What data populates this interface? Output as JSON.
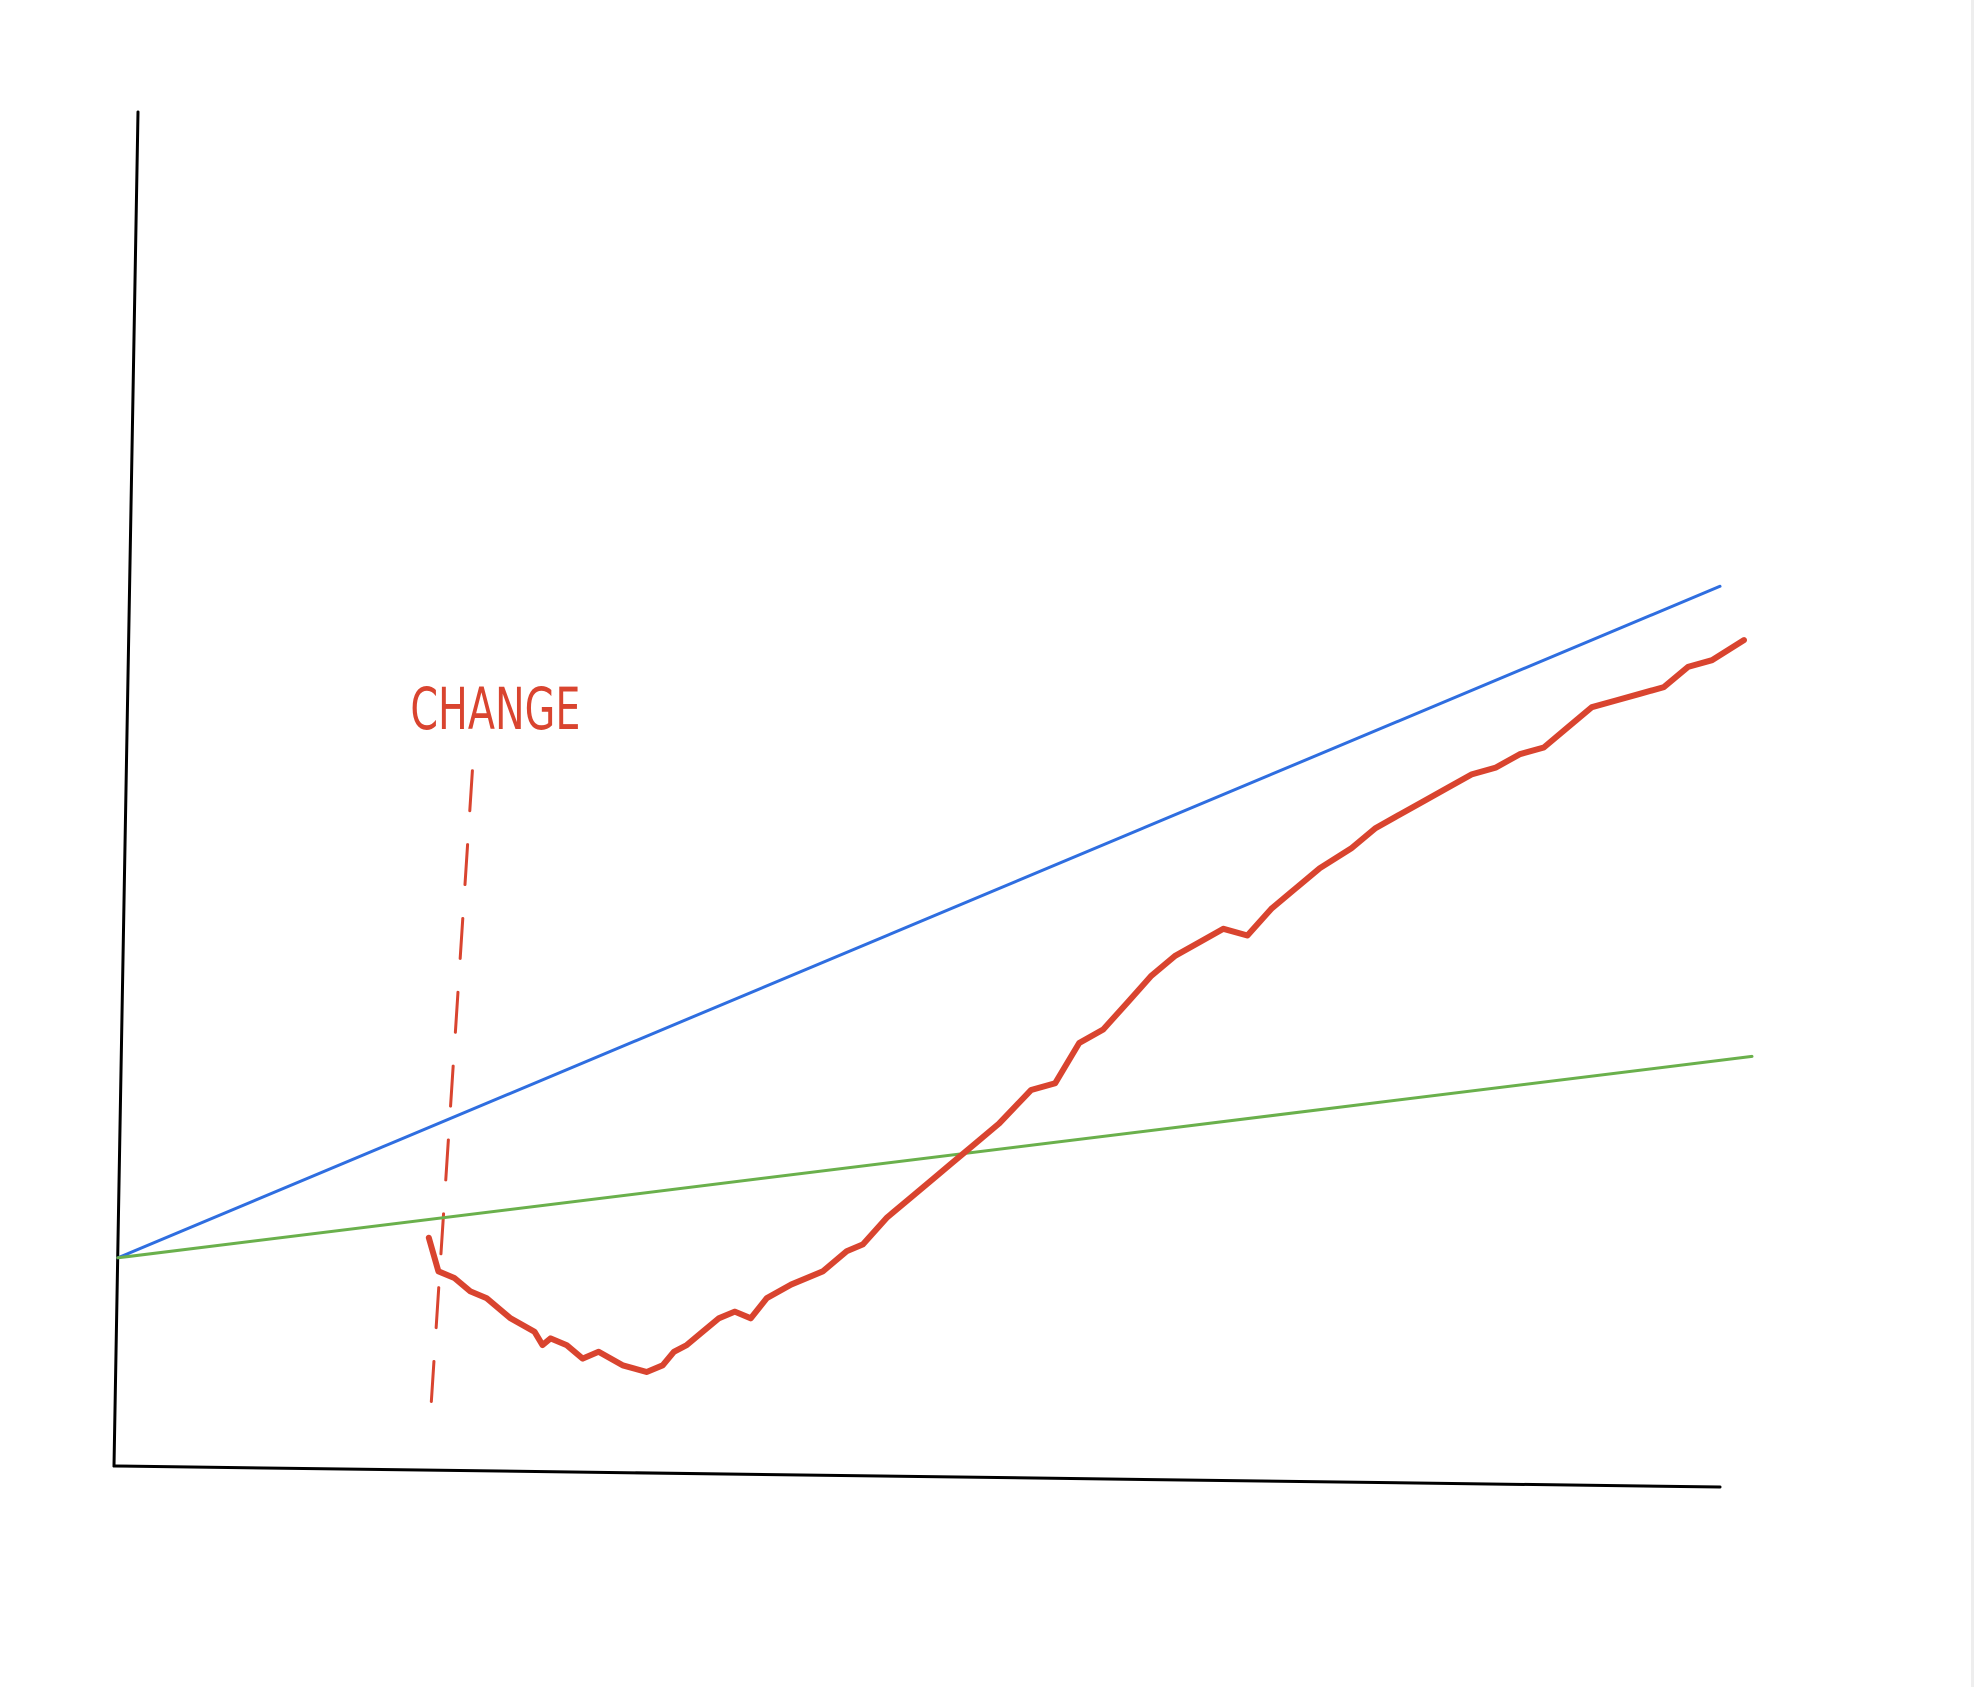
{
  "chart_data": {
    "type": "line",
    "title": "",
    "xlabel": "",
    "ylabel": "",
    "grid": false,
    "xlim": [
      0,
      100
    ],
    "ylim": [
      0,
      100
    ],
    "axis_color": "#000000",
    "series": [
      {
        "color": "#2f6ee0",
        "stroke": "thin",
        "x": [
          0,
          100
        ],
        "y": [
          15.5,
          65.5
        ]
      },
      {
        "color": "#6ab04c",
        "stroke": "thin",
        "x": [
          0,
          102
        ],
        "y": [
          15.5,
          30.5
        ]
      },
      {
        "color": "#d9442f",
        "stroke": "thick",
        "x": [
          19.4,
          20.0,
          21.0,
          22.0,
          23.0,
          24.5,
          26.0,
          26.5,
          27.0,
          28.0,
          29.0,
          30.0,
          31.5,
          33.0,
          34.0,
          34.7,
          35.5,
          36.5,
          37.5,
          38.5,
          39.5,
          40.5,
          42.0,
          44.0,
          45.5,
          46.5,
          48.0,
          49.5,
          51.0,
          52.0,
          53.5,
          55.0,
          57.0,
          58.5,
          60.0,
          61.5,
          63.0,
          64.5,
          66.0,
          67.5,
          69.0,
          70.5,
          72.0,
          73.5,
          75.0,
          77.0,
          78.5,
          80.0,
          81.5,
          83.0,
          84.5,
          86.0,
          87.5,
          89.0,
          90.5,
          92.0,
          93.5,
          95.0,
          96.5,
          98.0,
          99.5,
          101.5
        ],
        "y": [
          17.0,
          14.5,
          14.0,
          13.0,
          12.5,
          11.0,
          10.0,
          9.0,
          9.5,
          9.0,
          8.0,
          8.5,
          7.5,
          7.0,
          7.5,
          8.5,
          9.0,
          10.0,
          11.0,
          11.5,
          11.0,
          12.5,
          13.5,
          14.5,
          16.0,
          16.5,
          18.5,
          20.0,
          21.5,
          22.5,
          24.0,
          25.5,
          28.0,
          28.5,
          31.5,
          32.5,
          34.5,
          36.5,
          38.0,
          39.0,
          40.0,
          39.5,
          41.5,
          43.0,
          44.5,
          46.0,
          47.5,
          48.5,
          49.5,
          50.5,
          51.5,
          52.0,
          53.0,
          53.5,
          55.0,
          56.5,
          57.0,
          57.5,
          58.0,
          59.5,
          60.0,
          61.5
        ]
      }
    ],
    "annotations": [
      {
        "text": "CHANGE",
        "color": "#d9442f",
        "x": 19.5,
        "line_style": "dashed",
        "y_range": [
          0,
          54
        ]
      }
    ]
  }
}
